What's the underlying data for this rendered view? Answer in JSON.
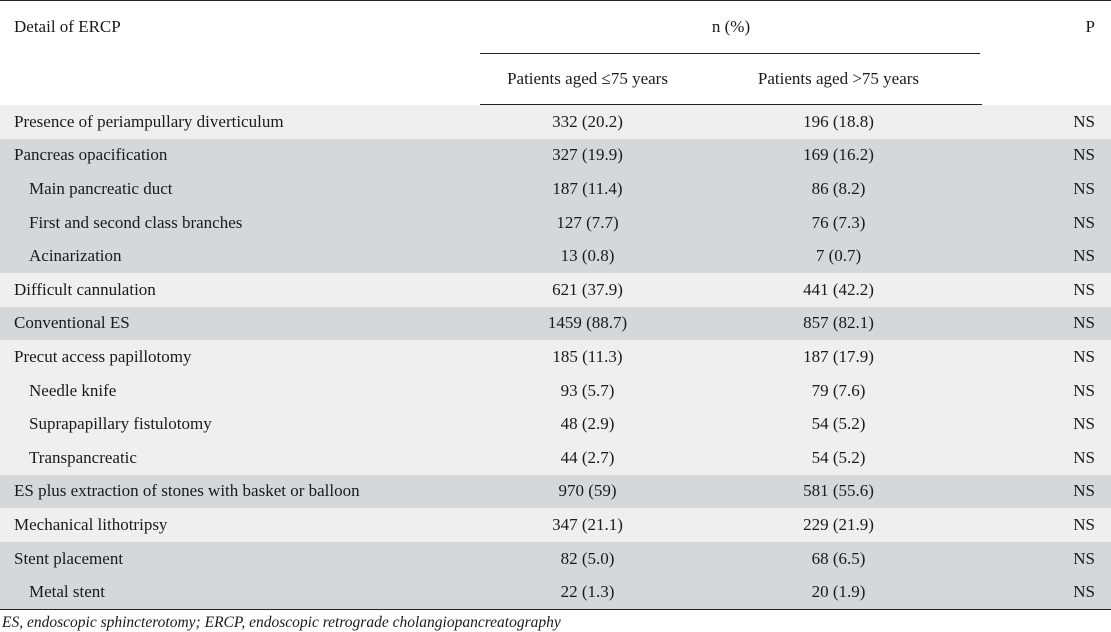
{
  "header": {
    "detail": "Detail of ERCP",
    "n_pct": "n (%)",
    "p": "P",
    "group1": "Patients aged ≤75 years",
    "group2": "Patients aged >75 years"
  },
  "rows": [
    {
      "label": "Presence of periampullary diverticulum",
      "g1": "332 (20.2)",
      "g2": "196 (18.8)",
      "p": "NS",
      "indent": false,
      "shade": "light"
    },
    {
      "label": "Pancreas opacification",
      "g1": "327 (19.9)",
      "g2": "169 (16.2)",
      "p": "NS",
      "indent": false,
      "shade": "dark"
    },
    {
      "label": "Main pancreatic duct",
      "g1": "187 (11.4)",
      "g2": "86 (8.2)",
      "p": "NS",
      "indent": true,
      "shade": "dark"
    },
    {
      "label": "First and second class branches",
      "g1": "127 (7.7)",
      "g2": "76 (7.3)",
      "p": "NS",
      "indent": true,
      "shade": "dark"
    },
    {
      "label": "Acinarization",
      "g1": "13 (0.8)",
      "g2": "7 (0.7)",
      "p": "NS",
      "indent": true,
      "shade": "dark"
    },
    {
      "label": "Difficult cannulation",
      "g1": "621 (37.9)",
      "g2": "441 (42.2)",
      "p": "NS",
      "indent": false,
      "shade": "light"
    },
    {
      "label": "Conventional ES",
      "g1": "1459 (88.7)",
      "g2": "857 (82.1)",
      "p": "NS",
      "indent": false,
      "shade": "dark"
    },
    {
      "label": "Precut access papillotomy",
      "g1": "185 (11.3)",
      "g2": "187 (17.9)",
      "p": "NS",
      "indent": false,
      "shade": "light"
    },
    {
      "label": "Needle knife",
      "g1": "93 (5.7)",
      "g2": "79 (7.6)",
      "p": "NS",
      "indent": true,
      "shade": "light"
    },
    {
      "label": "Suprapapillary fistulotomy",
      "g1": "48 (2.9)",
      "g2": "54 (5.2)",
      "p": "NS",
      "indent": true,
      "shade": "light"
    },
    {
      "label": "Transpancreatic",
      "g1": "44 (2.7)",
      "g2": "54 (5.2)",
      "p": "NS",
      "indent": true,
      "shade": "light"
    },
    {
      "label": "ES plus extraction of stones with basket or balloon",
      "g1": "970 (59)",
      "g2": "581 (55.6)",
      "p": "NS",
      "indent": false,
      "shade": "dark"
    },
    {
      "label": "Mechanical lithotripsy",
      "g1": "347 (21.1)",
      "g2": "229 (21.9)",
      "p": "NS",
      "indent": false,
      "shade": "light"
    },
    {
      "label": "Stent placement",
      "g1": "82 (5.0)",
      "g2": "68 (6.5)",
      "p": "NS",
      "indent": false,
      "shade": "dark"
    },
    {
      "label": "Metal stent",
      "g1": "22 (1.3)",
      "g2": "20 (1.9)",
      "p": "NS",
      "indent": true,
      "shade": "dark"
    }
  ],
  "footnote": "ES, endoscopic sphincterotomy; ERCP, endoscopic retrograde cholangiopancreatography",
  "colors": {
    "light_row": "#efefef",
    "dark_row": "#d6d7d9",
    "rule": "#222222"
  }
}
